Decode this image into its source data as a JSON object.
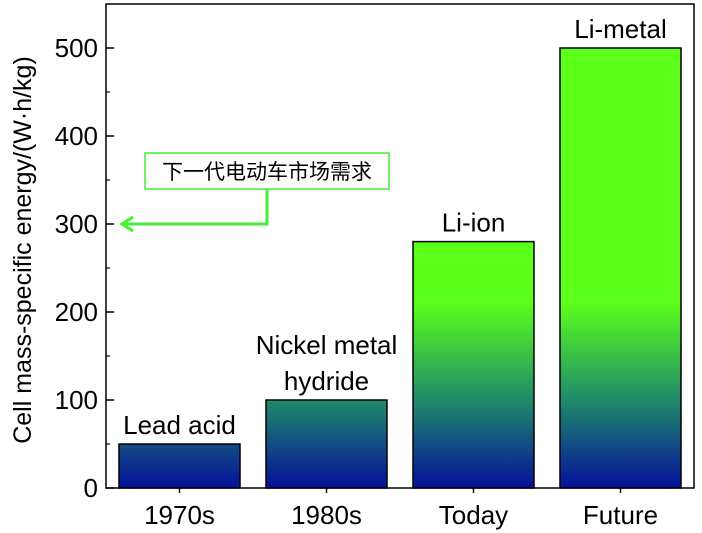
{
  "chart_data": {
    "type": "bar",
    "categories": [
      "1970s",
      "1980s",
      "Today",
      "Future"
    ],
    "values": [
      50,
      100,
      280,
      500
    ],
    "bar_labels": [
      [
        "Lead acid"
      ],
      [
        "Nickel metal",
        "hydride"
      ],
      [
        "Li-ion"
      ],
      [
        "Li-metal"
      ]
    ],
    "ylabel": "Cell mass-specific energy/(W·h/kg)",
    "ylim": [
      0,
      550
    ],
    "yticks": [
      0,
      100,
      200,
      300,
      400,
      500
    ],
    "grid": false,
    "annotation": {
      "text": "下一代电动车市场需求",
      "value": 300,
      "color": "#44ee33"
    },
    "colors": {
      "gradient_top": "#5cff1a",
      "gradient_mid": "#1f8a6a",
      "gradient_bottom": "#06109a",
      "bar_stroke": "#000000"
    }
  }
}
